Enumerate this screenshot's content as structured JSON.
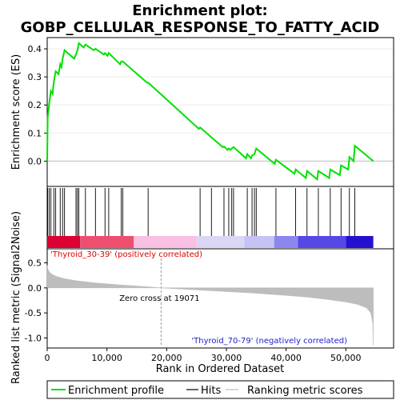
{
  "chart_data": {
    "type": "line",
    "title_line1": "Enrichment plot:",
    "title_line2": "GOBP_CELLULAR_RESPONSE_TO_FATTY_ACID",
    "ylabel_top": "Enrichment score (ES)",
    "ylabel_bottom": "Ranked list metric (Signal2Noise)",
    "xlabel": "Rank in Ordered Dataset",
    "x_range": [
      0,
      58000
    ],
    "x_ticks": [
      0,
      10000,
      20000,
      30000,
      40000,
      50000
    ],
    "x_tick_labels": [
      "0",
      "10,000",
      "20,000",
      "30,000",
      "40,000",
      "50,000"
    ],
    "es_ylim": [
      -0.09,
      0.44
    ],
    "es_ticks": [
      0.0,
      0.1,
      0.2,
      0.3,
      0.4
    ],
    "es_tick_labels": [
      "0.0",
      "0.1",
      "0.2",
      "0.3",
      "0.4"
    ],
    "metric_ylim": [
      -1.2,
      0.78
    ],
    "metric_ticks": [
      0.5,
      0.0,
      -0.5,
      -1.0
    ],
    "metric_tick_labels": [
      "0.5",
      "0.0",
      "-0.5",
      "-1.0"
    ],
    "n_genes": 54600,
    "zero_cross": 19071,
    "zero_cross_label": "Zero cross at 19071",
    "pos_label": "'Thyroid_30-39' (positively correlated)",
    "neg_label": "'Thyroid_70-79' (negatively correlated)",
    "hits": [
      80,
      330,
      620,
      1120,
      1420,
      2180,
      2580,
      2900,
      4820,
      5060,
      5300,
      6400,
      8080,
      9680,
      10300,
      12400,
      12650,
      16900,
      25600,
      27500,
      29600,
      30400,
      30900,
      31200,
      33500,
      34300,
      34700,
      35000,
      38300,
      41600,
      43500,
      45400,
      47400,
      49200,
      50600,
      51500
    ],
    "es_profile": [
      [
        0,
        0.0
      ],
      [
        80,
        0.155
      ],
      [
        330,
        0.205
      ],
      [
        620,
        0.25
      ],
      [
        900,
        0.24
      ],
      [
        1120,
        0.285
      ],
      [
        1420,
        0.32
      ],
      [
        1900,
        0.31
      ],
      [
        2180,
        0.345
      ],
      [
        2400,
        0.335
      ],
      [
        2580,
        0.365
      ],
      [
        2900,
        0.395
      ],
      [
        4500,
        0.365
      ],
      [
        4820,
        0.38
      ],
      [
        5060,
        0.395
      ],
      [
        5300,
        0.42
      ],
      [
        6100,
        0.405
      ],
      [
        6400,
        0.415
      ],
      [
        7800,
        0.395
      ],
      [
        8080,
        0.4
      ],
      [
        9500,
        0.38
      ],
      [
        9680,
        0.385
      ],
      [
        10100,
        0.375
      ],
      [
        10300,
        0.385
      ],
      [
        12200,
        0.345
      ],
      [
        12400,
        0.355
      ],
      [
        12650,
        0.355
      ],
      [
        16700,
        0.28
      ],
      [
        16900,
        0.28
      ],
      [
        25400,
        0.115
      ],
      [
        25600,
        0.12
      ],
      [
        27500,
        0.085
      ],
      [
        29400,
        0.05
      ],
      [
        29600,
        0.052
      ],
      [
        30200,
        0.04
      ],
      [
        30400,
        0.045
      ],
      [
        30700,
        0.04
      ],
      [
        30900,
        0.045
      ],
      [
        31200,
        0.05
      ],
      [
        33300,
        0.01
      ],
      [
        33500,
        0.025
      ],
      [
        34100,
        0.01
      ],
      [
        34300,
        0.02
      ],
      [
        34700,
        0.025
      ],
      [
        35000,
        0.045
      ],
      [
        38100,
        -0.01
      ],
      [
        38300,
        0.005
      ],
      [
        41400,
        -0.045
      ],
      [
        41600,
        -0.03
      ],
      [
        43300,
        -0.06
      ],
      [
        43500,
        -0.035
      ],
      [
        45200,
        -0.065
      ],
      [
        45400,
        -0.035
      ],
      [
        47200,
        -0.06
      ],
      [
        47400,
        -0.03
      ],
      [
        49000,
        -0.05
      ],
      [
        49200,
        -0.015
      ],
      [
        50400,
        -0.03
      ],
      [
        50600,
        0.015
      ],
      [
        51300,
        0.0
      ],
      [
        51500,
        0.055
      ],
      [
        54600,
        0.0
      ]
    ],
    "metric_profile": [
      [
        0,
        0.45
      ],
      [
        150,
        0.36
      ],
      [
        400,
        0.31
      ],
      [
        800,
        0.27
      ],
      [
        1500,
        0.23
      ],
      [
        3000,
        0.18
      ],
      [
        5000,
        0.14
      ],
      [
        8000,
        0.1
      ],
      [
        12000,
        0.06
      ],
      [
        16000,
        0.03
      ],
      [
        19071,
        0.0
      ],
      [
        22000,
        -0.02
      ],
      [
        28000,
        -0.06
      ],
      [
        34000,
        -0.1
      ],
      [
        40000,
        -0.15
      ],
      [
        44000,
        -0.19
      ],
      [
        47000,
        -0.23
      ],
      [
        50000,
        -0.28
      ],
      [
        52000,
        -0.33
      ],
      [
        53500,
        -0.4
      ],
      [
        54200,
        -0.5
      ],
      [
        54500,
        -0.7
      ],
      [
        54600,
        -1.15
      ]
    ],
    "colorbar": [
      {
        "from": 0,
        "to": 5500,
        "color": "#dd0033"
      },
      {
        "from": 5500,
        "to": 14500,
        "color": "#ee4f6f"
      },
      {
        "from": 14500,
        "to": 25000,
        "color": "#f9c0e3"
      },
      {
        "from": 25000,
        "to": 33000,
        "color": "#dcd6f5"
      },
      {
        "from": 33000,
        "to": 38000,
        "color": "#c5c2f5"
      },
      {
        "from": 38000,
        "to": 42000,
        "color": "#8d86ef"
      },
      {
        "from": 42000,
        "to": 50000,
        "color": "#5548e6"
      },
      {
        "from": 50000,
        "to": 54600,
        "color": "#2610d0"
      }
    ],
    "legend": [
      "Enrichment profile",
      "Hits",
      "Ranking metric scores"
    ],
    "colors": {
      "es_line": "#00e000",
      "hit": "#000000",
      "metric_fill": "#bdbdbd",
      "pos_label": "#e00000",
      "neg_label": "#2222cc",
      "zero_line": "#bdbdbd"
    }
  }
}
